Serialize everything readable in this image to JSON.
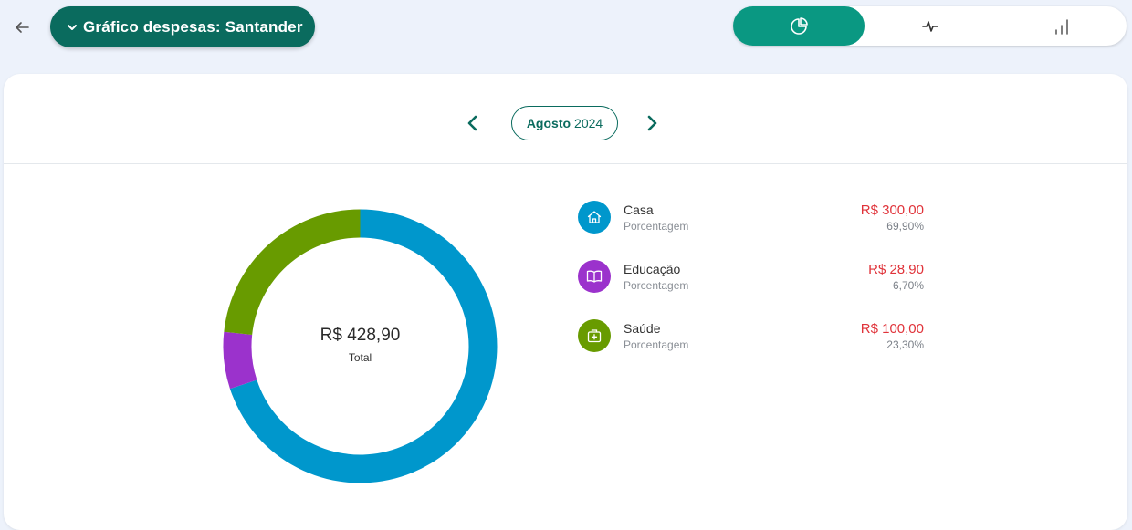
{
  "header": {
    "title": "Gráfico despesas: Santander"
  },
  "view_toggle": {
    "options": [
      {
        "icon": "pie-chart-icon",
        "active": true
      },
      {
        "icon": "pulse-line-icon",
        "active": false
      },
      {
        "icon": "bar-chart-icon",
        "active": false
      }
    ],
    "active_color": "#0a9882"
  },
  "period": {
    "month": "Agosto",
    "year": "2024"
  },
  "summary": {
    "total_value": "R$ 428,90",
    "total_label": "Total"
  },
  "categories": [
    {
      "name": "Casa",
      "sub": "Porcentagem",
      "amount": "R$ 300,00",
      "percent": "69,90%",
      "color": "#0097cc",
      "icon": "home-icon"
    },
    {
      "name": "Educação",
      "sub": "Porcentagem",
      "amount": "R$ 28,90",
      "percent": "6,70%",
      "color": "#9b32cc",
      "icon": "book-icon"
    },
    {
      "name": "Saúde",
      "sub": "Porcentagem",
      "amount": "R$ 100,00",
      "percent": "23,30%",
      "color": "#689b00",
      "icon": "medical-kit-icon"
    }
  ],
  "chart_data": {
    "type": "pie",
    "categories": [
      "Casa",
      "Educação",
      "Saúde"
    ],
    "values": [
      69.9,
      6.7,
      23.3
    ],
    "amounts": [
      300.0,
      28.9,
      100.0
    ],
    "colors": [
      "#0097cc",
      "#9b32cc",
      "#689b00"
    ]
  }
}
